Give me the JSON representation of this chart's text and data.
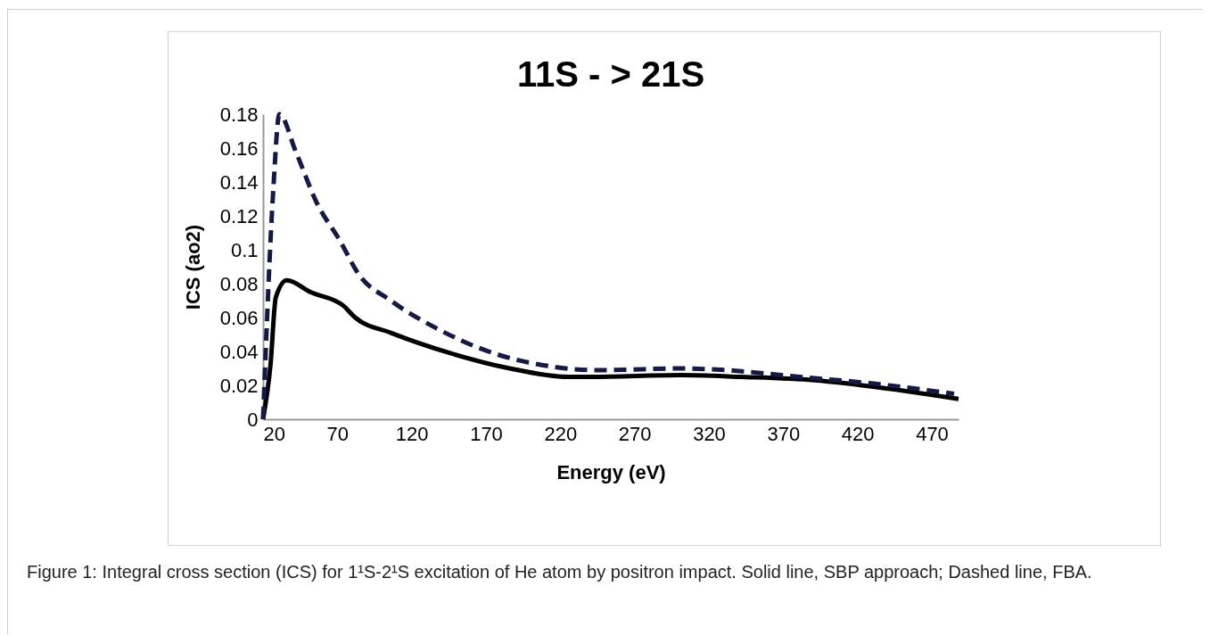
{
  "chart_data": {
    "type": "line",
    "title": "11S - > 21S",
    "xlabel": "Energy (eV)",
    "ylabel": "ICS (ao2)",
    "annotations": [
      "Figure 1: Integral cross section (ICS) for 1¹S-2¹S excitation of He atom by positron impact. Solid line, SBP approach; Dashed line, FBA."
    ],
    "xlim": [
      20,
      488
    ],
    "xticks": [
      20,
      70,
      120,
      170,
      220,
      270,
      320,
      370,
      420,
      470
    ],
    "ylim": [
      0,
      0.18
    ],
    "yticks": [
      0,
      0.02,
      0.04,
      0.06,
      0.08,
      0.1,
      0.12,
      0.14,
      0.16,
      0.18
    ],
    "grid": false,
    "marker": "none",
    "series": [
      {
        "color": "#000000",
        "line_style": "solid",
        "x": [
          20,
          25,
          28.6,
          36,
          52,
          74,
          82,
          106,
          146,
          186,
          225,
          241,
          301,
          341,
          391,
          441,
          488
        ],
        "values": [
          0,
          0.032,
          0.072,
          0.082,
          0.075,
          0.067,
          0.06,
          0.051,
          0.039,
          0.03,
          0.025,
          0.025,
          0.026,
          0.025,
          0.023,
          0.018,
          0.012
        ]
      },
      {
        "color": "#141a44",
        "line_style": "dashed",
        "x": [
          20,
          27,
          31,
          42,
          56,
          72,
          84,
          106,
          136,
          175,
          215,
          241,
          251,
          301,
          331,
          381,
          431,
          485
        ],
        "values": [
          0,
          0.137,
          0.18,
          0.158,
          0.128,
          0.105,
          0.086,
          0.07,
          0.054,
          0.039,
          0.031,
          0.029,
          0.029,
          0.03,
          0.029,
          0.025,
          0.021,
          0.015
        ]
      }
    ]
  }
}
